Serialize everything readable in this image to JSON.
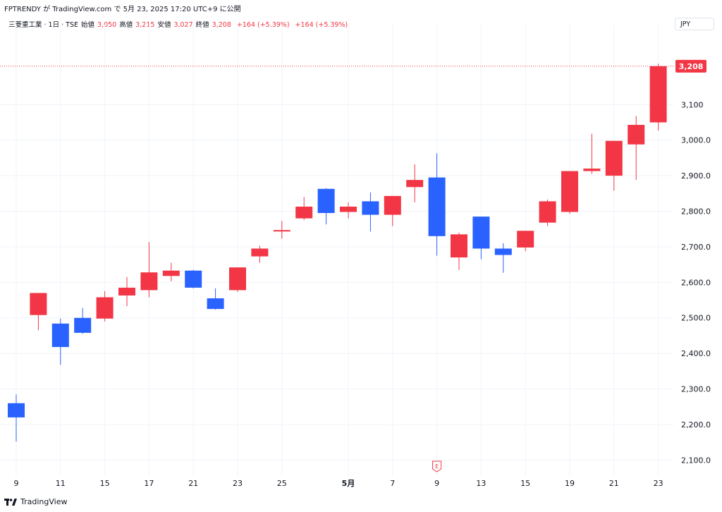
{
  "header": {
    "attribution": "FPTRENDY が TradingView.com で 5月 23, 2025 17:20 UTC+9 に公開"
  },
  "legend": {
    "symbol": "三菱重工業 · 1日 · TSE",
    "open_label": "始値",
    "open_value": "3,050",
    "high_label": "高値",
    "high_value": "3,215",
    "low_label": "安値",
    "low_value": "3,027",
    "close_label": "終値",
    "close_value": "3,208",
    "change1": "+164 (+5.39%)",
    "change2": "+164 (+5.39%)"
  },
  "currency": "JPY",
  "last_price_label": "3,208",
  "footer": {
    "brand": "TradingView"
  },
  "colors": {
    "up": "#f23645",
    "down": "#2962ff",
    "grid": "#f0f3fa",
    "price_line": "#f23645"
  },
  "chart_data": {
    "type": "candlestick",
    "y_axis": {
      "ticks": [
        2100,
        2200,
        2300,
        2400,
        2500,
        2600,
        2700,
        2800,
        2900,
        3000,
        3100
      ],
      "tick_labels": [
        "2,100.0",
        "2,200.0",
        "2,300.0",
        "2,400.0",
        "2,500.0",
        "2,600.0",
        "2,700.0",
        "2,800.0",
        "2,900.0",
        "3,000.0",
        "3,100"
      ],
      "range": [
        2065,
        3305
      ]
    },
    "x_axis": {
      "tick_labels": [
        {
          "index": 0,
          "label": "9",
          "bold": false
        },
        {
          "index": 2,
          "label": "11",
          "bold": false
        },
        {
          "index": 4,
          "label": "15",
          "bold": false
        },
        {
          "index": 6,
          "label": "17",
          "bold": false
        },
        {
          "index": 8,
          "label": "21",
          "bold": false
        },
        {
          "index": 10,
          "label": "23",
          "bold": false
        },
        {
          "index": 12,
          "label": "25",
          "bold": false
        },
        {
          "index": 15,
          "label": "5月",
          "bold": true
        },
        {
          "index": 17,
          "label": "7",
          "bold": false
        },
        {
          "index": 19,
          "label": "9",
          "bold": false
        },
        {
          "index": 21,
          "label": "13",
          "bold": false
        },
        {
          "index": 23,
          "label": "15",
          "bold": false
        },
        {
          "index": 25,
          "label": "19",
          "bold": false
        },
        {
          "index": 27,
          "label": "21",
          "bold": false
        },
        {
          "index": 29,
          "label": "23",
          "bold": false
        }
      ]
    },
    "earnings_marker": {
      "index": 19,
      "label": "E"
    },
    "last_price": 3208,
    "candles": [
      {
        "o": 2260,
        "h": 2285,
        "l": 2152,
        "c": 2220
      },
      {
        "o": 2508,
        "h": 2570,
        "l": 2465,
        "c": 2570
      },
      {
        "o": 2484,
        "h": 2498,
        "l": 2368,
        "c": 2418
      },
      {
        "o": 2500,
        "h": 2528,
        "l": 2455,
        "c": 2458
      },
      {
        "o": 2498,
        "h": 2575,
        "l": 2490,
        "c": 2558
      },
      {
        "o": 2563,
        "h": 2615,
        "l": 2533,
        "c": 2585
      },
      {
        "o": 2578,
        "h": 2713,
        "l": 2558,
        "c": 2628
      },
      {
        "o": 2618,
        "h": 2655,
        "l": 2603,
        "c": 2633
      },
      {
        "o": 2633,
        "h": 2635,
        "l": 2583,
        "c": 2585
      },
      {
        "o": 2555,
        "h": 2583,
        "l": 2523,
        "c": 2525
      },
      {
        "o": 2578,
        "h": 2642,
        "l": 2573,
        "c": 2642
      },
      {
        "o": 2673,
        "h": 2703,
        "l": 2655,
        "c": 2695
      },
      {
        "o": 2743,
        "h": 2773,
        "l": 2723,
        "c": 2747
      },
      {
        "o": 2780,
        "h": 2840,
        "l": 2775,
        "c": 2813
      },
      {
        "o": 2863,
        "h": 2865,
        "l": 2763,
        "c": 2795
      },
      {
        "o": 2798,
        "h": 2825,
        "l": 2780,
        "c": 2813
      },
      {
        "o": 2828,
        "h": 2853,
        "l": 2743,
        "c": 2790
      },
      {
        "o": 2790,
        "h": 2843,
        "l": 2758,
        "c": 2843
      },
      {
        "o": 2868,
        "h": 2932,
        "l": 2825,
        "c": 2888
      },
      {
        "o": 2895,
        "h": 2963,
        "l": 2675,
        "c": 2730
      },
      {
        "o": 2670,
        "h": 2740,
        "l": 2635,
        "c": 2735
      },
      {
        "o": 2785,
        "h": 2785,
        "l": 2665,
        "c": 2695
      },
      {
        "o": 2695,
        "h": 2710,
        "l": 2627,
        "c": 2677
      },
      {
        "o": 2698,
        "h": 2745,
        "l": 2688,
        "c": 2745
      },
      {
        "o": 2768,
        "h": 2833,
        "l": 2758,
        "c": 2828
      },
      {
        "o": 2798,
        "h": 2913,
        "l": 2793,
        "c": 2913
      },
      {
        "o": 2913,
        "h": 3018,
        "l": 2905,
        "c": 2920
      },
      {
        "o": 2900,
        "h": 2998,
        "l": 2858,
        "c": 2998
      },
      {
        "o": 2988,
        "h": 3068,
        "l": 2888,
        "c": 3043
      },
      {
        "o": 3050,
        "h": 3215,
        "l": 3027,
        "c": 3208
      }
    ]
  }
}
